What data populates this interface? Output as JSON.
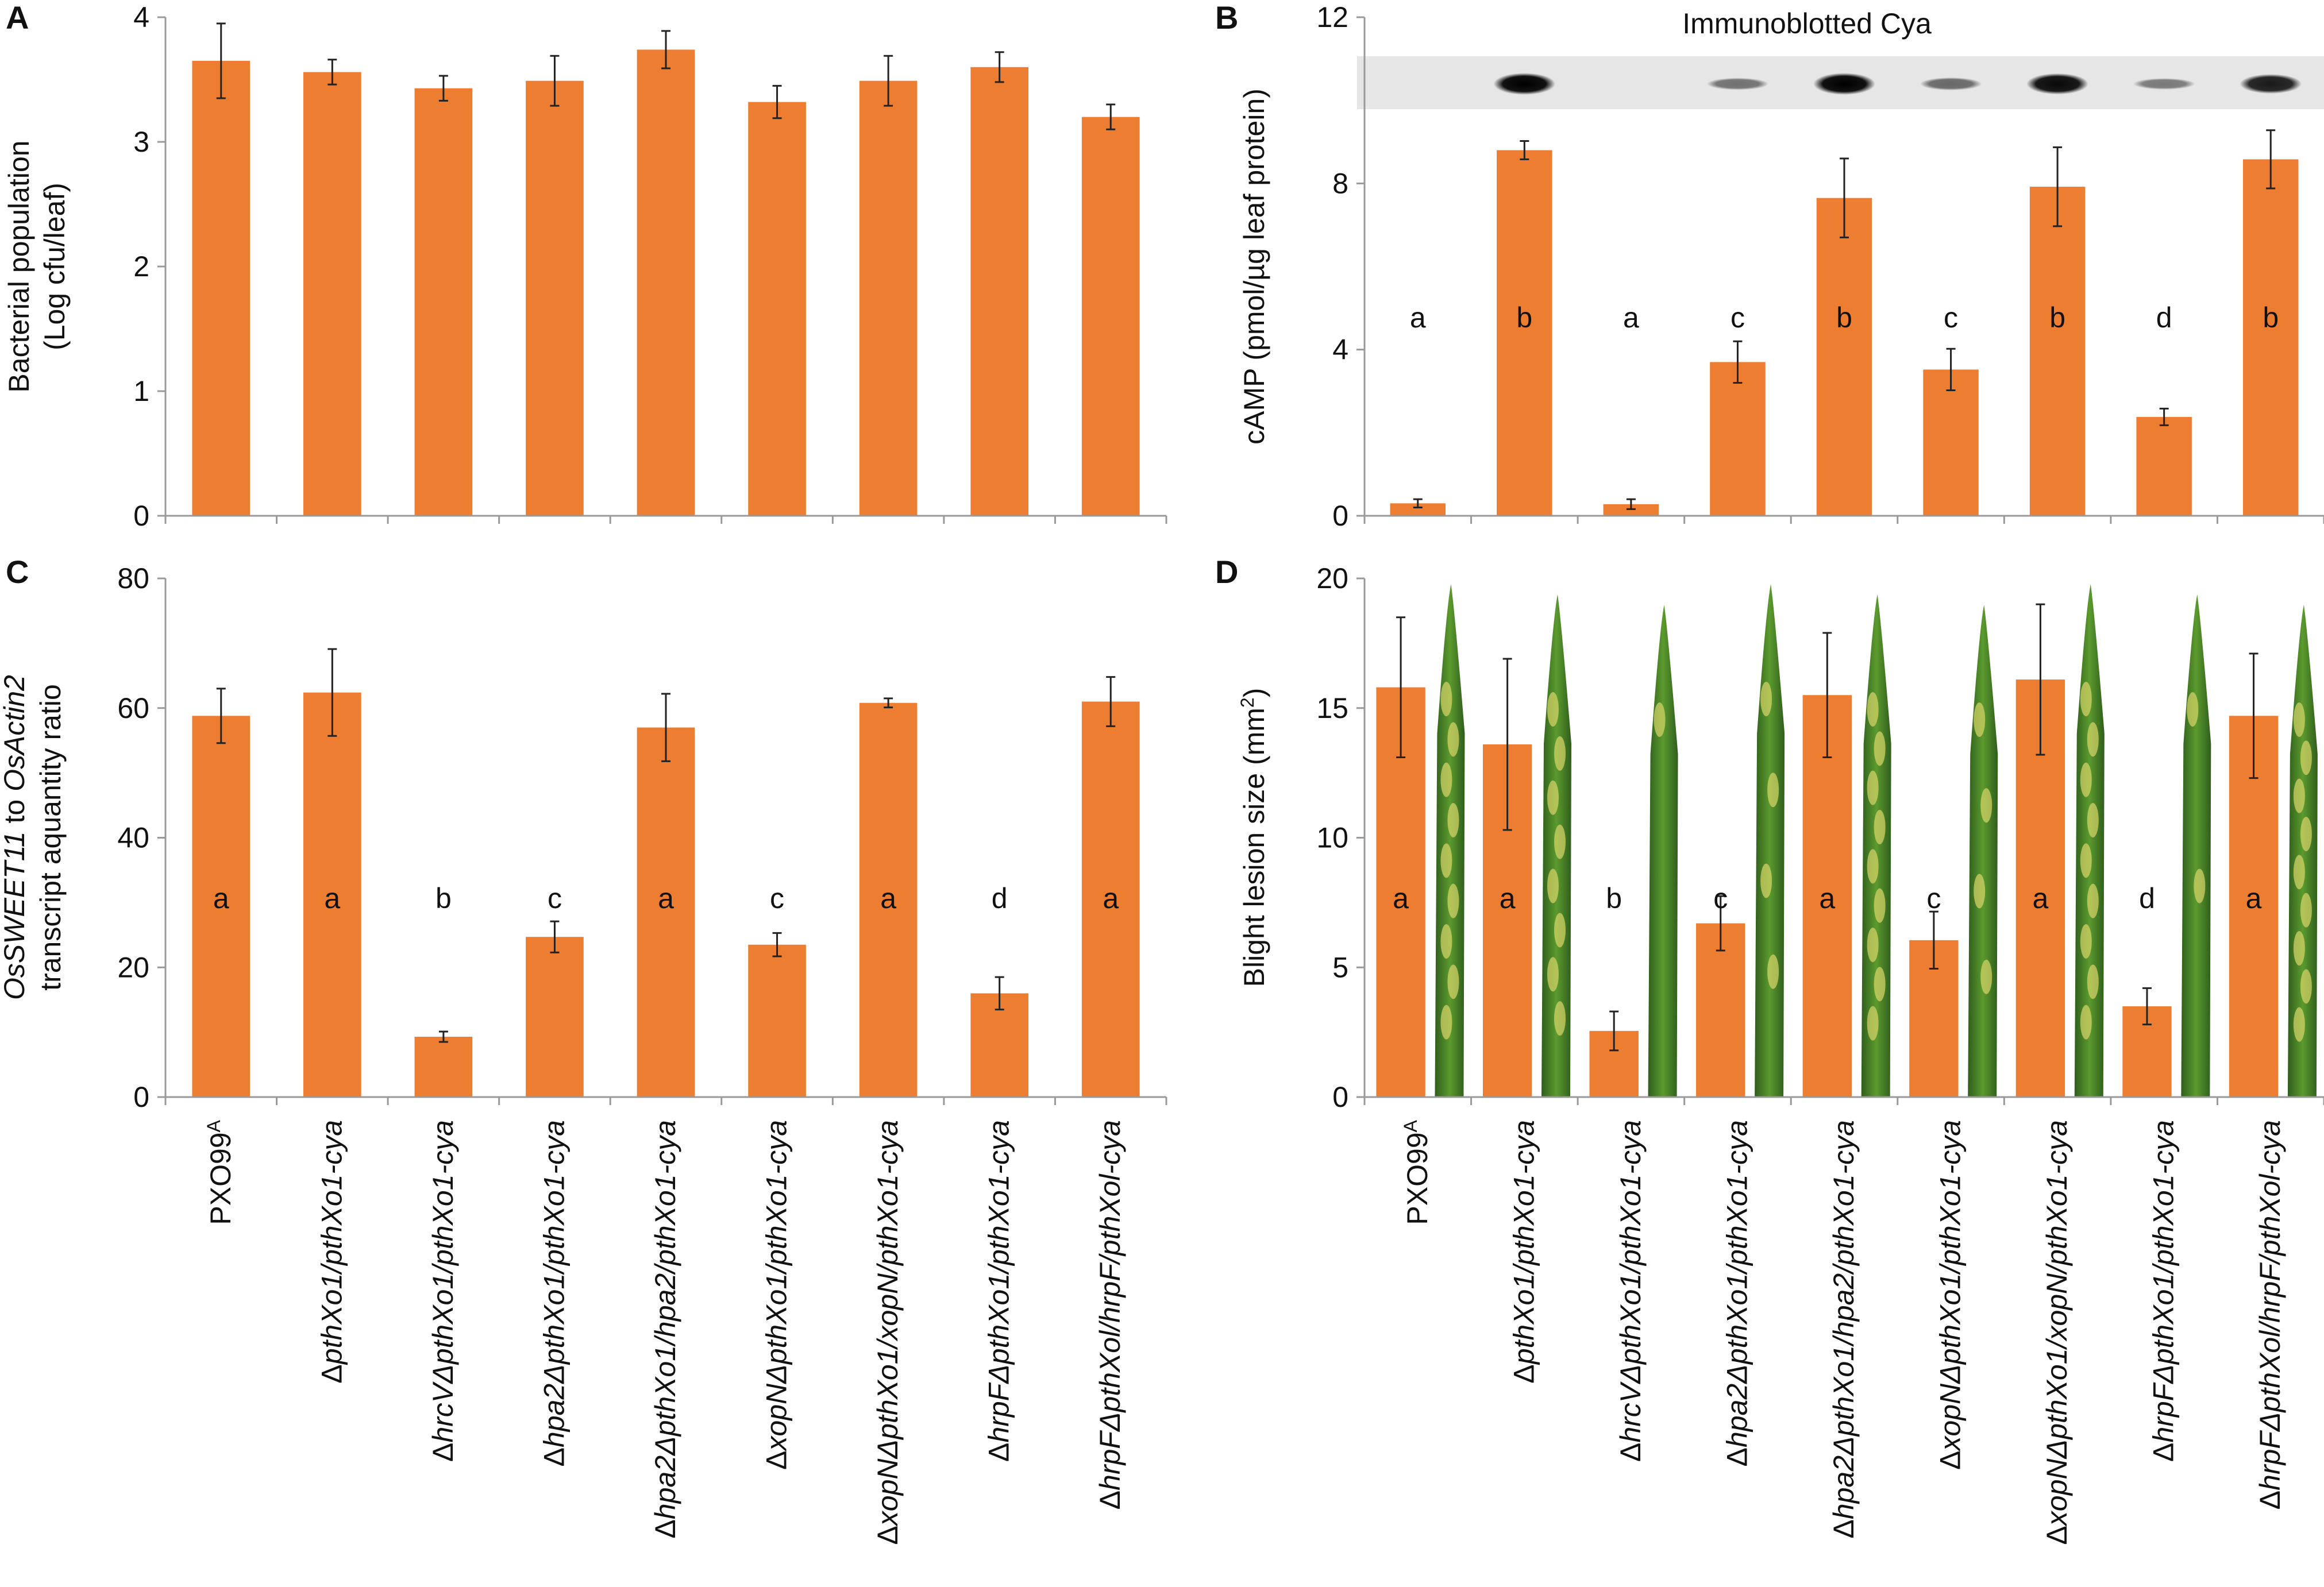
{
  "figure": {
    "categories": [
      "PXO99A",
      "ΔpthXo1/pthXo1-cya",
      "ΔhrcVΔpthXo1/pthXo1-cya",
      "Δhpa2ΔpthXo1/pthXo1-cya",
      "Δhpa2ΔpthXo1/hpa2/pthXo1-cya",
      "ΔxopNΔpthXo1/pthXo1-cya",
      "ΔxopNΔpthXo1/xopN/pthXo1-cya",
      "ΔhrpFΔpthXo1/pthXo1-cya",
      "ΔhrpFΔpthXol/hrpF/pthXol-cya"
    ],
    "first_category_main": "PXO99",
    "first_category_sup": "A"
  },
  "colors": {
    "bar": "#ED7D31",
    "axis": "#999999",
    "text": "#111111"
  },
  "chart_data": [
    {
      "panel": "A",
      "type": "bar",
      "title": "",
      "ylabel_line1": "Bacterial population",
      "ylabel_line2": "(Log cfu/leaf)",
      "ylim": [
        0,
        4
      ],
      "yticks": [
        0,
        1,
        2,
        3,
        4
      ],
      "values": [
        3.65,
        3.56,
        3.43,
        3.49,
        3.74,
        3.32,
        3.49,
        3.6,
        3.2
      ],
      "errors": [
        0.3,
        0.1,
        0.1,
        0.2,
        0.15,
        0.13,
        0.2,
        0.12,
        0.1
      ],
      "significance": []
    },
    {
      "panel": "B",
      "type": "bar",
      "title": "Immunoblotted Cya",
      "ylabel_line1": "cAMP (pmol/µg leaf protein)",
      "ylim": [
        0,
        12
      ],
      "yticks": [
        0,
        4,
        8,
        12
      ],
      "values": [
        0.3,
        8.8,
        0.28,
        3.7,
        7.65,
        3.52,
        7.92,
        2.38,
        8.58
      ],
      "errors": [
        0.1,
        0.22,
        0.12,
        0.5,
        0.95,
        0.5,
        0.95,
        0.2,
        0.7
      ],
      "significance": [
        "a",
        "b",
        "a",
        "c",
        "b",
        "c",
        "b",
        "d",
        "b"
      ],
      "blot_band_intensity": [
        0.0,
        1.0,
        0.0,
        0.35,
        1.0,
        0.4,
        0.95,
        0.3,
        0.85
      ]
    },
    {
      "panel": "C",
      "type": "bar",
      "title": "",
      "ylabel_italic1": "OsSWEET11",
      "ylabel_mid": " to ",
      "ylabel_italic2": "OsActin2",
      "ylabel_line2": "transcript aquantity ratio",
      "ylim": [
        0,
        80
      ],
      "yticks": [
        0,
        20,
        40,
        60,
        80
      ],
      "values": [
        58.8,
        62.4,
        9.3,
        24.7,
        57.0,
        23.5,
        60.8,
        16.0,
        61.0
      ],
      "errors": [
        4.2,
        6.7,
        0.8,
        2.4,
        5.2,
        1.8,
        0.7,
        2.5,
        3.8
      ],
      "significance": [
        "a",
        "a",
        "b",
        "c",
        "a",
        "c",
        "a",
        "d",
        "a"
      ]
    },
    {
      "panel": "D",
      "type": "bar",
      "title": "",
      "ylabel_main": "Blight lesion size (mm",
      "ylabel_sup": "2",
      "ylabel_end": ")",
      "ylim": [
        0,
        20
      ],
      "yticks": [
        0,
        5,
        10,
        15,
        20
      ],
      "values": [
        15.8,
        13.6,
        2.55,
        6.7,
        15.5,
        6.05,
        16.1,
        3.5,
        14.7
      ],
      "errors": [
        2.7,
        3.3,
        0.75,
        1.05,
        2.4,
        1.1,
        2.9,
        0.7,
        2.4
      ],
      "significance": [
        "a",
        "a",
        "b",
        "c",
        "a",
        "c",
        "a",
        "d",
        "a"
      ],
      "leaf_lesion_level": [
        0.9,
        0.8,
        0.1,
        0.4,
        0.9,
        0.35,
        0.9,
        0.2,
        0.85
      ]
    }
  ]
}
